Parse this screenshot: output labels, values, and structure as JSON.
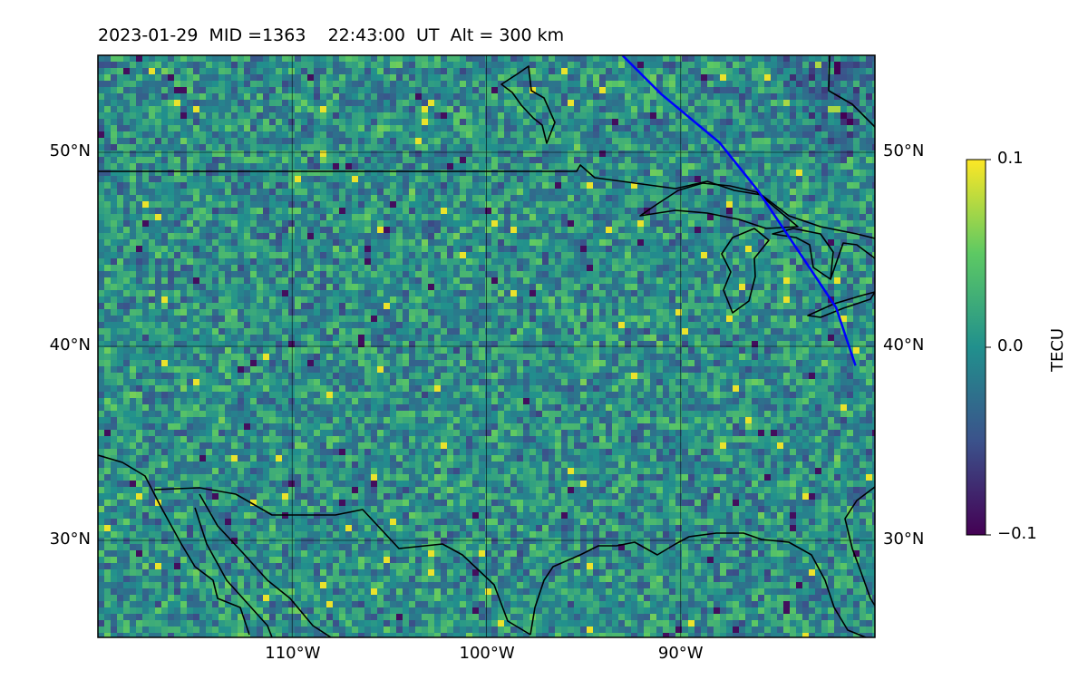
{
  "header": {
    "title": "2023-01-29  MID =1363    22:43:00  UT  Alt = 300 km"
  },
  "map": {
    "lat_range": [
      25,
      55
    ],
    "lon_range": [
      -120,
      -80
    ],
    "lat_ticks": [
      {
        "value": 50,
        "label": "50°N"
      },
      {
        "value": 40,
        "label": "40°N"
      },
      {
        "value": 30,
        "label": "30°N"
      }
    ],
    "lon_ticks": [
      {
        "value": -110,
        "label": "110°W"
      },
      {
        "value": -100,
        "label": "100°W"
      },
      {
        "value": -90,
        "label": "90°W"
      }
    ],
    "gridlines": true,
    "coastline_color": "#000000",
    "track_color": "#0000ff",
    "track": [
      [
        -93,
        55
      ],
      [
        -91,
        53
      ],
      [
        -88,
        50.5
      ],
      [
        -86,
        48
      ],
      [
        -84,
        45
      ],
      [
        -82,
        42
      ],
      [
        -81,
        39
      ]
    ]
  },
  "colorbar": {
    "label": "TECU",
    "min": -0.1,
    "max": 0.1,
    "ticks": [
      {
        "value": 0.1,
        "label": "0.1"
      },
      {
        "value": 0.0,
        "label": "0.0"
      },
      {
        "value": -0.1,
        "label": "−0.1"
      }
    ],
    "colormap": "viridis",
    "colors": [
      "#440154",
      "#3b528b",
      "#21908d",
      "#5dc963",
      "#fde725"
    ]
  }
}
